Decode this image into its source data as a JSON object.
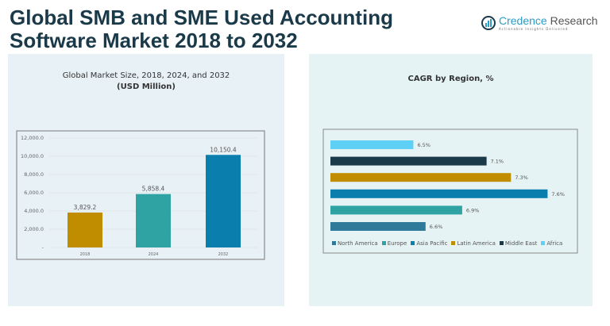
{
  "title": "Global SMB and SME Used Accounting Software Market 2018 to 2032",
  "logo": {
    "name_a": "Credence",
    "name_b": "Research",
    "tagline": "Actionable Insights Delivered"
  },
  "chart_data": [
    {
      "type": "bar",
      "title": "Global Market Size, 2018, 2024, and 2032",
      "subtitle": "(USD Million)",
      "categories": [
        "2018",
        "2024",
        "2032"
      ],
      "values": [
        3829.2,
        5858.4,
        10150.4
      ],
      "value_labels": [
        "3,829.2",
        "5,858.4",
        "10,150.4"
      ],
      "colors": [
        "#c08c00",
        "#2fa3a3",
        "#0a7fae"
      ],
      "ylim": [
        0,
        12000
      ],
      "yticks": [
        "-",
        "2,000.0",
        "4,000.0",
        "6,000.0",
        "8,000.0",
        "10,000.0",
        "12,000.0"
      ],
      "grid": true
    },
    {
      "type": "bar",
      "orientation": "horizontal",
      "title": "CAGR by Region, %",
      "categories": [
        "North America",
        "Europe",
        "Asia Pacific",
        "Latin America",
        "Middle East",
        "Africa"
      ],
      "values": [
        6.6,
        6.9,
        7.6,
        7.3,
        7.1,
        6.5
      ],
      "value_labels": [
        "6.6%",
        "6.9%",
        "7.6%",
        "7.3%",
        "7.1%",
        "6.5%"
      ],
      "colors": [
        "#2f7a9a",
        "#2fa3a3",
        "#0a7fae",
        "#c08c00",
        "#1a3a4a",
        "#5fd0f5"
      ],
      "legend": "bottom"
    }
  ]
}
